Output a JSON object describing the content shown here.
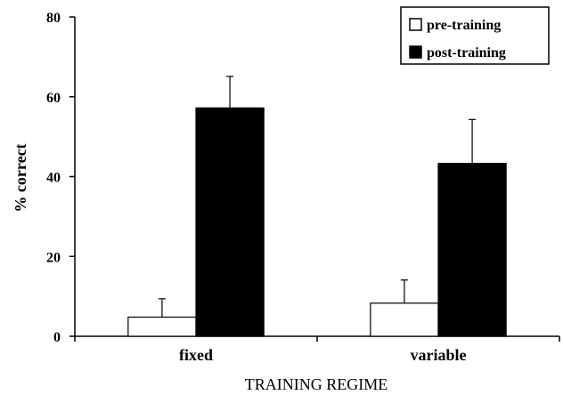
{
  "chart_data": {
    "type": "bar",
    "categories": [
      "fixed",
      "variable"
    ],
    "series": [
      {
        "name": "pre-training",
        "values": [
          4.8,
          8.3
        ],
        "error": [
          4.6,
          5.8
        ],
        "color": "#ffffff"
      },
      {
        "name": "post-training",
        "values": [
          57.2,
          43.3
        ],
        "error": [
          7.9,
          11.0
        ],
        "color": "#000000"
      }
    ],
    "xlabel": "TRAINING REGIME",
    "ylabel": "% correct",
    "ylim": [
      0,
      80
    ],
    "yticks": [
      0,
      20,
      40,
      60,
      80
    ],
    "grid": false,
    "legend_position": "top-right"
  }
}
